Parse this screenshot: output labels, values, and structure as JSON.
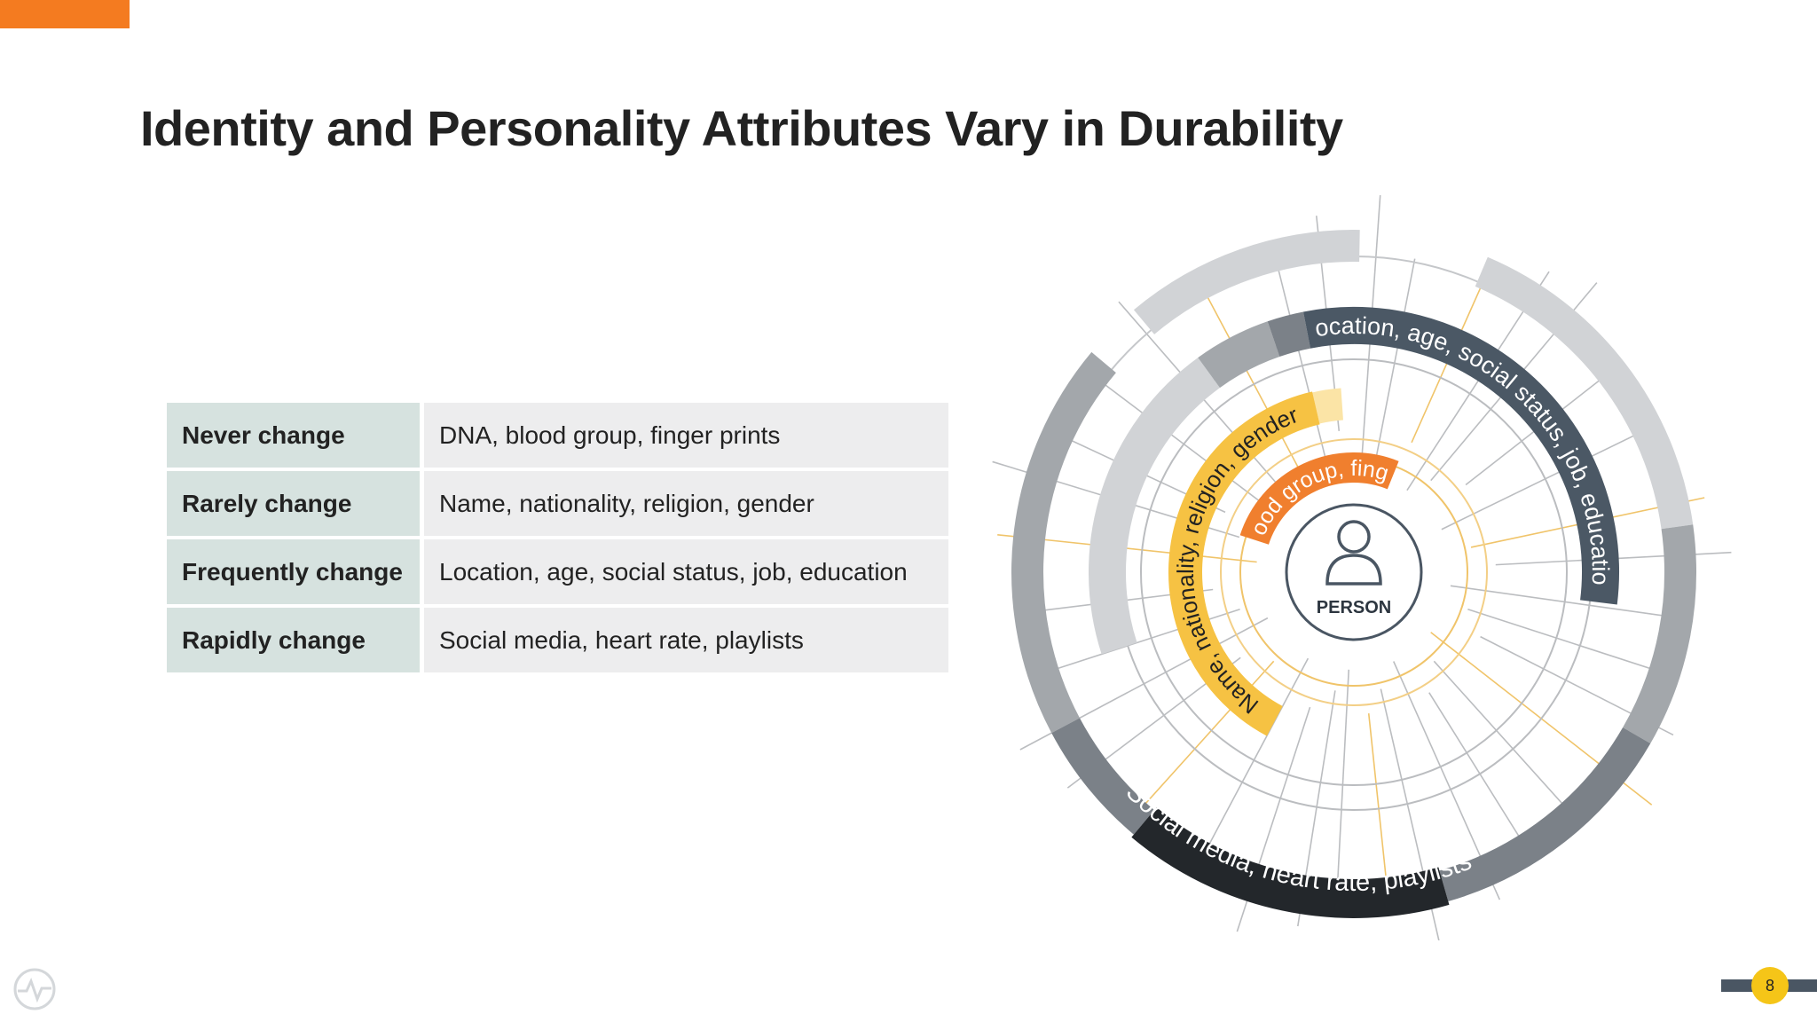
{
  "slide": {
    "title": "Identity and Personality Attributes Vary in Durability",
    "page_number": "8"
  },
  "table": [
    {
      "label": "Never change",
      "value": "DNA, blood group, finger prints"
    },
    {
      "label": "Rarely change",
      "value": "Name, nationality, religion, gender"
    },
    {
      "label": "Frequently change",
      "value": "Location, age, social status, job, education"
    },
    {
      "label": "Rapidly change",
      "value": "Social media, heart rate, playlists"
    }
  ],
  "diagram": {
    "center_label": "PERSON",
    "rings": [
      {
        "text": "DNA, blood group, finger prints",
        "color": "#f07f2e",
        "text_color": "#ffffff"
      },
      {
        "text": "Name, nationality, religion, gender",
        "color": "#f6c243",
        "text_color": "#222222"
      },
      {
        "text": "Location, age, social status, job, education",
        "color": "#4b5865",
        "text_color": "#ffffff"
      },
      {
        "text": "Social media, heart rate, playlists",
        "color": "#23272b",
        "text_color": "#ffffff"
      }
    ],
    "palette": {
      "light_gray": "#d1d3d6",
      "mid_gray": "#a3a7ab",
      "dark_gray": "#7b8188",
      "pale_yellow": "#fbe4a6",
      "line": "#bbbdc0"
    }
  }
}
